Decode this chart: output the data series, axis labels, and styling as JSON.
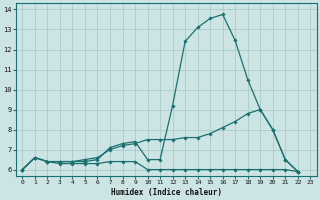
{
  "xlabel": "Humidex (Indice chaleur)",
  "xlim": [
    -0.5,
    23.5
  ],
  "ylim": [
    5.7,
    14.3
  ],
  "xticks": [
    0,
    1,
    2,
    3,
    4,
    5,
    6,
    7,
    8,
    9,
    10,
    11,
    12,
    13,
    14,
    15,
    16,
    17,
    18,
    19,
    20,
    21,
    22,
    23
  ],
  "yticks": [
    6,
    7,
    8,
    9,
    10,
    11,
    12,
    13,
    14
  ],
  "bg_color": "#cde4e4",
  "grid_color": "#aacccc",
  "line_color": "#1a7070",
  "lines": [
    {
      "x": [
        0,
        1,
        2,
        3,
        4,
        5,
        6,
        7,
        8,
        9,
        10,
        11,
        12,
        13,
        14,
        15,
        16,
        17,
        18,
        19,
        20,
        21,
        22
      ],
      "y": [
        6.0,
        6.6,
        6.4,
        6.4,
        6.4,
        6.4,
        6.5,
        7.1,
        7.3,
        7.4,
        6.5,
        6.5,
        9.2,
        12.4,
        13.1,
        13.55,
        13.75,
        12.45,
        10.5,
        9.0,
        8.0,
        6.5,
        5.9
      ]
    },
    {
      "x": [
        0,
        1,
        2,
        3,
        4,
        5,
        6,
        7,
        8,
        9,
        10,
        11,
        12,
        13,
        14,
        15,
        16,
        17,
        18,
        19,
        20,
        21,
        22
      ],
      "y": [
        6.0,
        6.6,
        6.4,
        6.4,
        6.4,
        6.5,
        6.6,
        7.0,
        7.2,
        7.3,
        7.5,
        7.5,
        7.5,
        7.6,
        7.6,
        7.8,
        8.1,
        8.4,
        8.8,
        9.0,
        8.0,
        6.5,
        5.9
      ]
    },
    {
      "x": [
        0,
        1,
        2,
        3,
        4,
        5,
        6,
        7,
        8,
        9,
        10,
        11,
        12,
        13,
        14,
        15,
        16,
        17,
        18,
        19,
        20,
        21,
        22
      ],
      "y": [
        6.0,
        6.6,
        6.4,
        6.3,
        6.3,
        6.3,
        6.3,
        6.4,
        6.4,
        6.4,
        6.0,
        6.0,
        6.0,
        6.0,
        6.0,
        6.0,
        6.0,
        6.0,
        6.0,
        6.0,
        6.0,
        6.0,
        5.9
      ]
    }
  ],
  "figsize": [
    3.2,
    2.0
  ],
  "dpi": 100
}
